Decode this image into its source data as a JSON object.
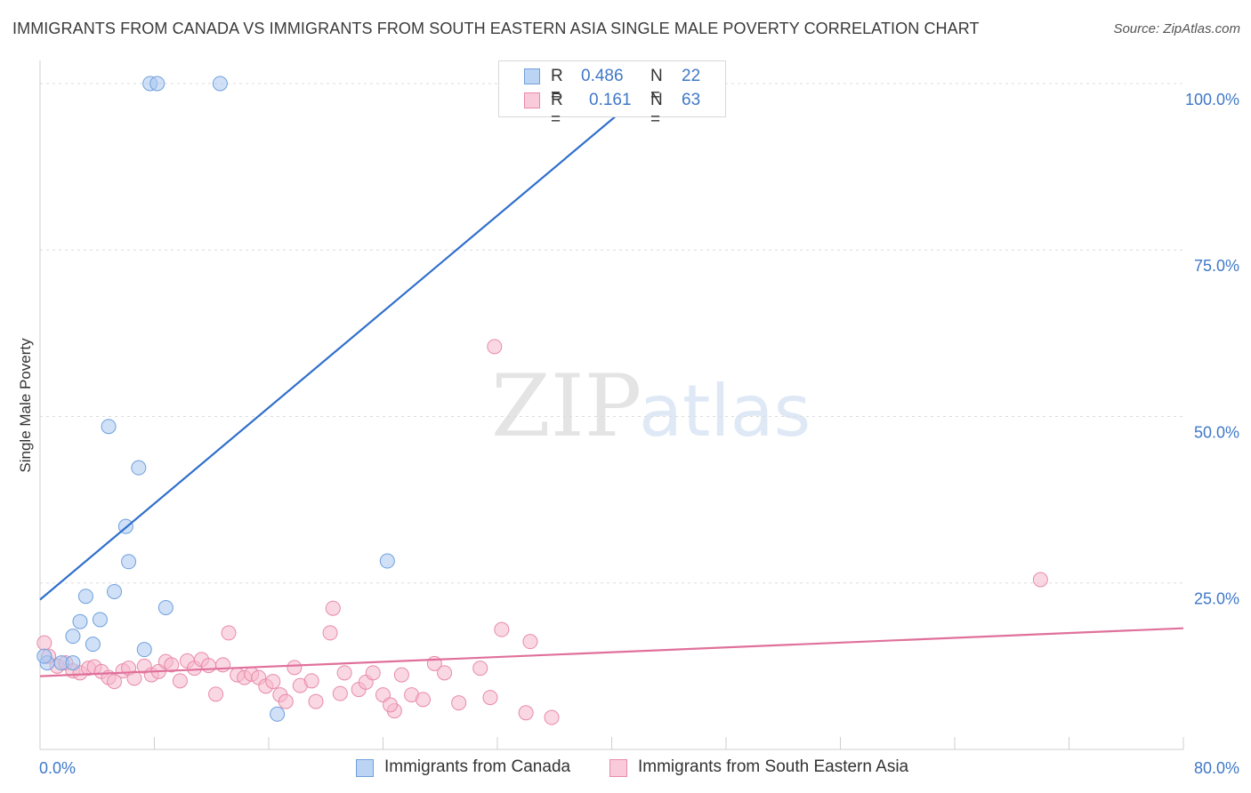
{
  "header": {
    "title": "IMMIGRANTS FROM CANADA VS IMMIGRANTS FROM SOUTH EASTERN ASIA SINGLE MALE POVERTY CORRELATION CHART",
    "source": "Source: ZipAtlas.com"
  },
  "watermark": {
    "zip": "ZIP",
    "atlas": "atlas"
  },
  "legend_top": {
    "rows": [
      {
        "r_label": "R =",
        "r_value": "0.486",
        "n_label": "N =",
        "n_value": "22",
        "color": "#a9c8f0"
      },
      {
        "r_label": "R =",
        "r_value": "0.161",
        "n_label": "N =",
        "n_value": "63",
        "color": "#f6b8cc"
      }
    ]
  },
  "legend_bottom": {
    "items": [
      {
        "label": "Immigrants from Canada",
        "color": "#a9c8f0"
      },
      {
        "label": "Immigrants from South Eastern Asia",
        "color": "#f6b8cc"
      }
    ]
  },
  "colors": {
    "canada_fill": "#a9c8f0",
    "canada_stroke": "#6f9fdc",
    "canada_line": "#2f6fcc",
    "sea_fill": "#f6b8cc",
    "sea_stroke": "#e88aa8",
    "sea_line": "#e0709a",
    "tick_label": "#3f78c8",
    "grid": "#dcdcdc"
  },
  "chart_data": {
    "type": "scatter",
    "ylabel": "Single Male Poverty",
    "xlabel": "",
    "xlim": [
      0,
      80
    ],
    "ylim": [
      0,
      102
    ],
    "x_tick_labels": [
      {
        "value": 0,
        "label": "0.0%"
      },
      {
        "value": 80,
        "label": "80.0%"
      }
    ],
    "y_tick_labels": [
      {
        "value": 25,
        "label": "25.0%"
      },
      {
        "value": 50,
        "label": "50.0%"
      },
      {
        "value": 75,
        "label": "75.0%"
      },
      {
        "value": 100,
        "label": "100.0%"
      }
    ],
    "grid": "horizontal dashed",
    "legend": "top-center and bottom",
    "series": [
      {
        "name": "Immigrants from Canada",
        "regression": {
          "x": [
            0,
            43
          ],
          "y": [
            22.5,
            100
          ]
        },
        "points": [
          {
            "x": 0.5,
            "y": 13
          },
          {
            "x": 1.5,
            "y": 13
          },
          {
            "x": 2.3,
            "y": 13
          },
          {
            "x": 2.3,
            "y": 17
          },
          {
            "x": 2.8,
            "y": 19.2
          },
          {
            "x": 3.2,
            "y": 23
          },
          {
            "x": 3.7,
            "y": 15.8
          },
          {
            "x": 4.2,
            "y": 19.5
          },
          {
            "x": 4.8,
            "y": 48.5
          },
          {
            "x": 5.2,
            "y": 23.7
          },
          {
            "x": 6.0,
            "y": 33.5
          },
          {
            "x": 6.2,
            "y": 28.2
          },
          {
            "x": 6.9,
            "y": 42.3
          },
          {
            "x": 7.3,
            "y": 15
          },
          {
            "x": 7.7,
            "y": 100
          },
          {
            "x": 8.2,
            "y": 100
          },
          {
            "x": 8.8,
            "y": 21.3
          },
          {
            "x": 12.6,
            "y": 100
          },
          {
            "x": 16.6,
            "y": 5.3
          },
          {
            "x": 24.3,
            "y": 28.3
          },
          {
            "x": 41.8,
            "y": 100
          },
          {
            "x": 0.3,
            "y": 14
          }
        ]
      },
      {
        "name": "Immigrants from South Eastern Asia",
        "regression": {
          "x": [
            0,
            80
          ],
          "y": [
            11,
            18.2
          ]
        },
        "points": [
          {
            "x": 0.3,
            "y": 16
          },
          {
            "x": 0.6,
            "y": 14
          },
          {
            "x": 1.2,
            "y": 12.5
          },
          {
            "x": 1.8,
            "y": 13
          },
          {
            "x": 2.3,
            "y": 11.8
          },
          {
            "x": 2.8,
            "y": 11.5
          },
          {
            "x": 3.4,
            "y": 12.2
          },
          {
            "x": 3.8,
            "y": 12.4
          },
          {
            "x": 4.3,
            "y": 11.7
          },
          {
            "x": 4.8,
            "y": 10.8
          },
          {
            "x": 5.2,
            "y": 10.2
          },
          {
            "x": 5.8,
            "y": 11.8
          },
          {
            "x": 6.2,
            "y": 12.2
          },
          {
            "x": 6.6,
            "y": 10.7
          },
          {
            "x": 7.3,
            "y": 12.5
          },
          {
            "x": 7.8,
            "y": 11.2
          },
          {
            "x": 8.3,
            "y": 11.7
          },
          {
            "x": 8.8,
            "y": 13.2
          },
          {
            "x": 9.2,
            "y": 12.7
          },
          {
            "x": 9.8,
            "y": 10.3
          },
          {
            "x": 10.3,
            "y": 13.3
          },
          {
            "x": 10.8,
            "y": 12.2
          },
          {
            "x": 11.3,
            "y": 13.5
          },
          {
            "x": 11.8,
            "y": 12.6
          },
          {
            "x": 12.3,
            "y": 8.3
          },
          {
            "x": 12.8,
            "y": 12.7
          },
          {
            "x": 13.2,
            "y": 17.5
          },
          {
            "x": 13.8,
            "y": 11.2
          },
          {
            "x": 14.3,
            "y": 10.8
          },
          {
            "x": 14.8,
            "y": 11.3
          },
          {
            "x": 15.3,
            "y": 10.8
          },
          {
            "x": 15.8,
            "y": 9.5
          },
          {
            "x": 16.3,
            "y": 10.2
          },
          {
            "x": 16.8,
            "y": 8.2
          },
          {
            "x": 17.2,
            "y": 7.2
          },
          {
            "x": 17.8,
            "y": 12.3
          },
          {
            "x": 18.2,
            "y": 9.6
          },
          {
            "x": 19.0,
            "y": 10.3
          },
          {
            "x": 19.3,
            "y": 7.2
          },
          {
            "x": 20.3,
            "y": 17.5
          },
          {
            "x": 20.5,
            "y": 21.2
          },
          {
            "x": 21.0,
            "y": 8.4
          },
          {
            "x": 21.3,
            "y": 11.5
          },
          {
            "x": 22.3,
            "y": 9.0
          },
          {
            "x": 22.8,
            "y": 10.1
          },
          {
            "x": 23.3,
            "y": 11.5
          },
          {
            "x": 24.0,
            "y": 8.2
          },
          {
            "x": 24.8,
            "y": 5.8
          },
          {
            "x": 25.3,
            "y": 11.2
          },
          {
            "x": 26.0,
            "y": 8.2
          },
          {
            "x": 26.8,
            "y": 7.5
          },
          {
            "x": 27.6,
            "y": 12.9
          },
          {
            "x": 28.3,
            "y": 11.5
          },
          {
            "x": 29.3,
            "y": 7.0
          },
          {
            "x": 30.8,
            "y": 12.2
          },
          {
            "x": 31.5,
            "y": 7.8
          },
          {
            "x": 31.8,
            "y": 60.5
          },
          {
            "x": 32.3,
            "y": 18
          },
          {
            "x": 34.0,
            "y": 5.5
          },
          {
            "x": 34.3,
            "y": 16.2
          },
          {
            "x": 35.8,
            "y": 4.8
          },
          {
            "x": 70.0,
            "y": 25.5
          },
          {
            "x": 24.5,
            "y": 6.7
          }
        ]
      }
    ]
  }
}
